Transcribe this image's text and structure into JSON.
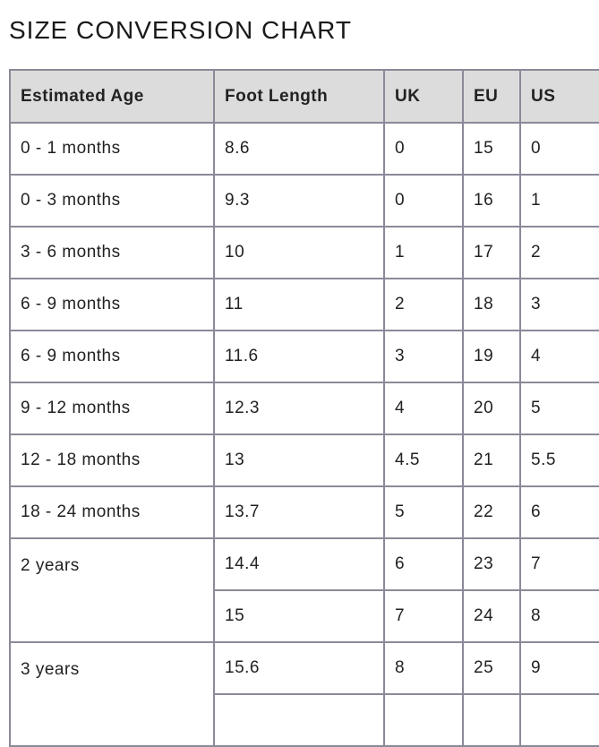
{
  "title": "SIZE CONVERSION CHART",
  "headers": [
    "Estimated Age",
    "Foot Length",
    "UK",
    "EU",
    "US"
  ],
  "rows": [
    {
      "age": "0 - 1 months",
      "foot": "8.6",
      "uk": "0",
      "eu": "15",
      "us": "0"
    },
    {
      "age": "0 - 3 months",
      "foot": "9.3",
      "uk": "0",
      "eu": "16",
      "us": "1"
    },
    {
      "age": "3 - 6 months",
      "foot": "10",
      "uk": "1",
      "eu": "17",
      "us": "2"
    },
    {
      "age": "6 - 9 months",
      "foot": "11",
      "uk": "2",
      "eu": "18",
      "us": "3"
    },
    {
      "age": "6 - 9 months",
      "foot": "11.6",
      "uk": "3",
      "eu": "19",
      "us": "4"
    },
    {
      "age": "9 - 12 months",
      "foot": "12.3",
      "uk": "4",
      "eu": "20",
      "us": "5"
    },
    {
      "age": "12 - 18 months",
      "foot": "13",
      "uk": "4.5",
      "eu": "21",
      "us": "5.5"
    },
    {
      "age": "18 - 24 months",
      "foot": "13.7",
      "uk": "5",
      "eu": "22",
      "us": "6"
    },
    {
      "age": "2 years",
      "foot": "14.4",
      "uk": "6",
      "eu": "23",
      "us": "7"
    },
    {
      "age": "",
      "foot": "15",
      "uk": "7",
      "eu": "24",
      "us": "8"
    },
    {
      "age": "3 years",
      "foot": "15.6",
      "uk": "8",
      "eu": "25",
      "us": "9"
    }
  ]
}
